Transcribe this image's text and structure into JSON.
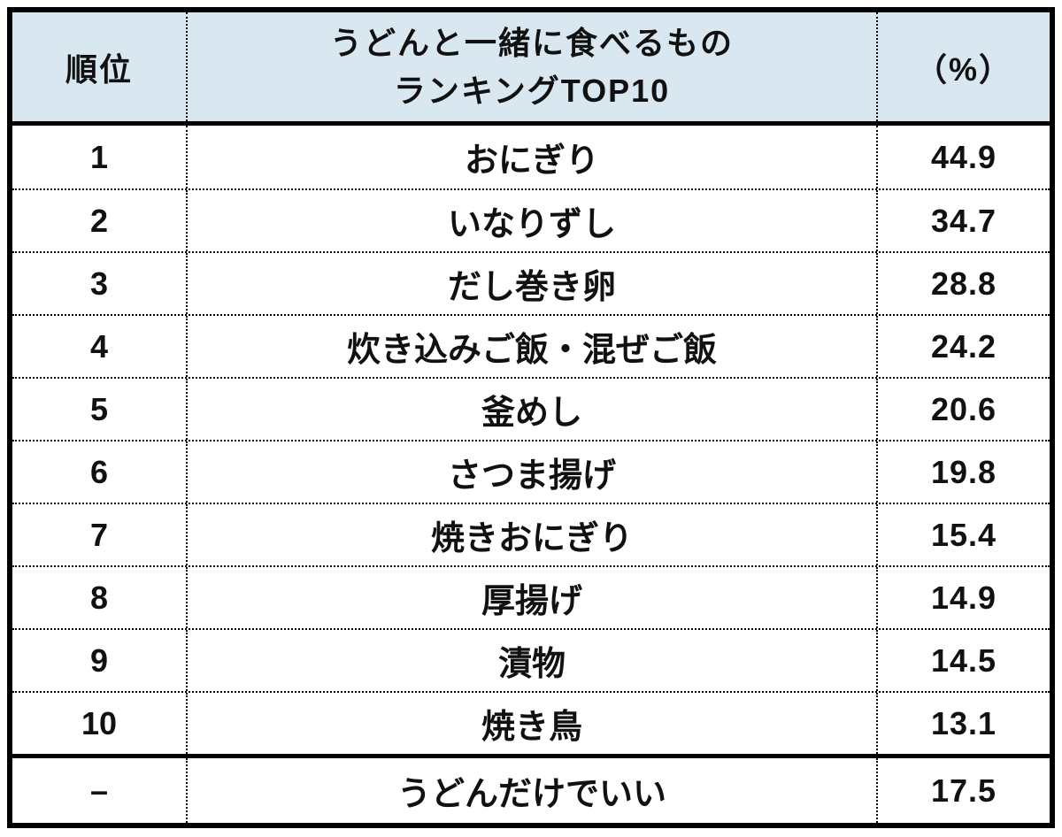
{
  "table": {
    "header": {
      "rank_label": "順位",
      "item_label_line1": "うどんと一緒に食べるもの",
      "item_label_line2": "ランキングTOP10",
      "percent_label": "（%）"
    },
    "rows": [
      {
        "rank": "1",
        "item": "おにぎり",
        "percent": "44.9"
      },
      {
        "rank": "2",
        "item": "いなりずし",
        "percent": "34.7"
      },
      {
        "rank": "3",
        "item": "だし巻き卵",
        "percent": "28.8"
      },
      {
        "rank": "4",
        "item": "炊き込みご飯・混ぜご飯",
        "percent": "24.2"
      },
      {
        "rank": "5",
        "item": "釜めし",
        "percent": "20.6"
      },
      {
        "rank": "6",
        "item": "さつま揚げ",
        "percent": "19.8"
      },
      {
        "rank": "7",
        "item": "焼きおにぎり",
        "percent": "15.4"
      },
      {
        "rank": "8",
        "item": "厚揚げ",
        "percent": "14.9"
      },
      {
        "rank": "9",
        "item": "漬物",
        "percent": "14.5"
      },
      {
        "rank": "10",
        "item": "焼き鳥",
        "percent": "13.1"
      }
    ],
    "footer_row": {
      "rank": "–",
      "item": "うどんだけでいい",
      "percent": "17.5"
    },
    "colors": {
      "header_bg": "#d9e8f0",
      "border": "#000000",
      "text": "#111111"
    }
  },
  "chart_data": {
    "type": "table",
    "title": "うどんと一緒に食べるもの ランキングTOP10",
    "columns": [
      "順位",
      "うどんと一緒に食べるもの ランキングTOP10",
      "（%）"
    ],
    "ranks": [
      "1",
      "2",
      "3",
      "4",
      "5",
      "6",
      "7",
      "8",
      "9",
      "10",
      "–"
    ],
    "categories": [
      "おにぎり",
      "いなりずし",
      "だし巻き卵",
      "炊き込みご飯・混ぜご飯",
      "釜めし",
      "さつま揚げ",
      "焼きおにぎり",
      "厚揚げ",
      "漬物",
      "焼き鳥",
      "うどんだけでいい"
    ],
    "values": [
      44.9,
      34.7,
      28.8,
      24.2,
      20.6,
      19.8,
      15.4,
      14.9,
      14.5,
      13.1,
      17.5
    ],
    "unit": "%",
    "notes": "Last row (うどんだけでいい) is separated from the TOP10 by a solid divider and has no rank."
  }
}
